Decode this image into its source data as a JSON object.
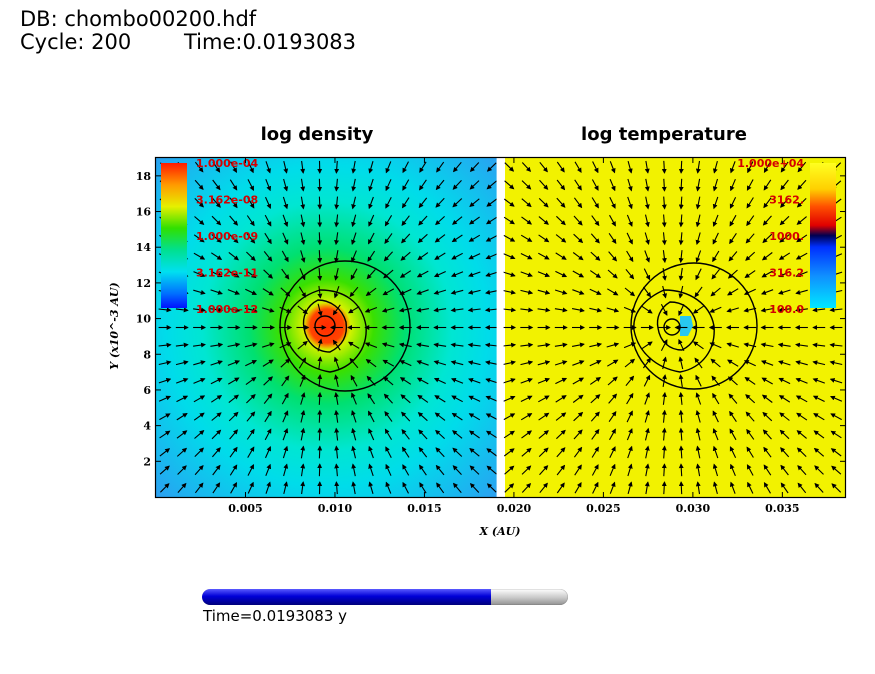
{
  "header": {
    "db": "DB: chombo00200.hdf",
    "cycle": "Cycle: 200",
    "time": "Time:0.0193083"
  },
  "panels": {
    "left_title": "log density",
    "right_title": "log temperature"
  },
  "colors": {
    "axis": "#000000",
    "colorbar_label": "#d40000",
    "contour": "#000000",
    "vector": "#000000",
    "temperature_background": "#f2f200"
  },
  "chart_data": {
    "type": "heatmap",
    "xlabel": "X (AU)",
    "ylabel": "Y (x10^-3 AU)",
    "xlim": [
      0.0,
      0.0385
    ],
    "ylim": [
      0.0,
      19.0
    ],
    "x_ticks": [
      0.005,
      0.01,
      0.015,
      0.02,
      0.025,
      0.03,
      0.035
    ],
    "x_tick_labels": [
      "0.005",
      "0.010",
      "0.015",
      "0.020",
      "0.025",
      "0.030",
      "0.035"
    ],
    "y_ticks": [
      2,
      4,
      6,
      8,
      10,
      12,
      14,
      16,
      18
    ],
    "y_tick_labels": [
      "2",
      "4",
      "6",
      "8",
      "10",
      "12",
      "14",
      "16",
      "18"
    ],
    "panel_split_x": 0.0192,
    "source_centers": [
      {
        "x": 0.0094,
        "y": 9.5
      },
      {
        "x": 0.0289,
        "y": 9.5
      }
    ],
    "density_colorbar": [
      "1.000e-04",
      "3.162e-08",
      "1.000e-09",
      "3.162e-11",
      "1.000e-12"
    ],
    "temperature_colorbar": [
      "1.000e+04",
      "3162.",
      "1000.",
      "316.2",
      "100.0"
    ],
    "vector_field": "radial inflow toward source center"
  },
  "timebar": {
    "progress": 0.79,
    "label": "Time=0.0193083 y"
  }
}
